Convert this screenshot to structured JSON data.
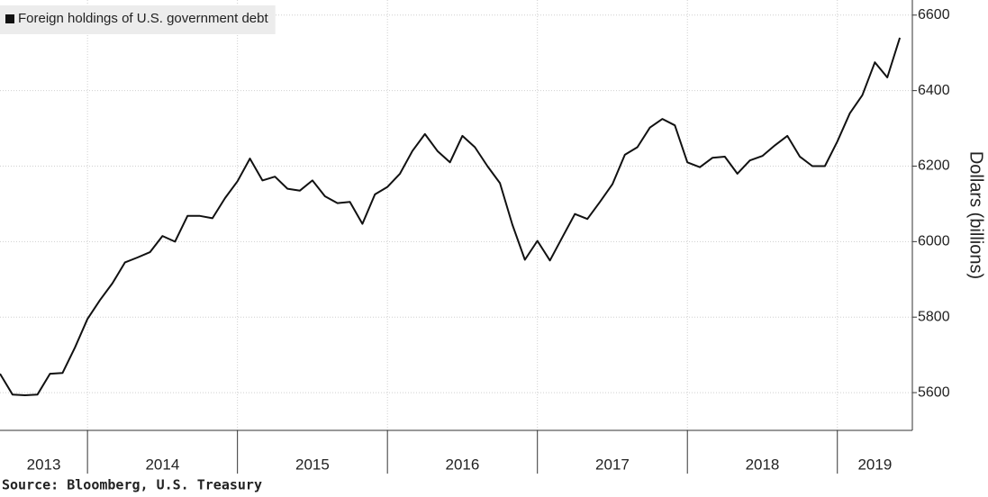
{
  "chart_data": {
    "type": "line",
    "series": [
      {
        "name": "Foreign holdings of U.S. government debt",
        "color": "#111111",
        "values": [
          5650,
          5595,
          5593,
          5595,
          5650,
          5652,
          5720,
          5795,
          5845,
          5890,
          5945,
          5958,
          5972,
          6015,
          6000,
          6068,
          6068,
          6062,
          6115,
          6160,
          6220,
          6162,
          6172,
          6140,
          6135,
          6162,
          6120,
          6102,
          6105,
          6047,
          6125,
          6145,
          6180,
          6240,
          6285,
          6240,
          6210,
          6280,
          6250,
          6200,
          6155,
          6045,
          5952,
          6002,
          5950,
          6012,
          6073,
          6060,
          6105,
          6152,
          6230,
          6250,
          6302,
          6325,
          6308,
          6210,
          6197,
          6222,
          6225,
          6180,
          6215,
          6227,
          6255,
          6280,
          6225,
          6200,
          6200,
          6265,
          6340,
          6388,
          6475,
          6435,
          6540
        ]
      }
    ],
    "x": [
      "2013-06",
      "2013-07",
      "2013-08",
      "2013-09",
      "2013-10",
      "2013-11",
      "2013-12",
      "2014-01",
      "2014-02",
      "2014-03",
      "2014-04",
      "2014-05",
      "2014-06",
      "2014-07",
      "2014-08",
      "2014-09",
      "2014-10",
      "2014-11",
      "2014-12",
      "2015-01",
      "2015-02",
      "2015-03",
      "2015-04",
      "2015-05",
      "2015-06",
      "2015-07",
      "2015-08",
      "2015-09",
      "2015-10",
      "2015-11",
      "2015-12",
      "2016-01",
      "2016-02",
      "2016-03",
      "2016-04",
      "2016-05",
      "2016-06",
      "2016-07",
      "2016-08",
      "2016-09",
      "2016-10",
      "2016-11",
      "2016-12",
      "2017-01",
      "2017-02",
      "2017-03",
      "2017-04",
      "2017-05",
      "2017-06",
      "2017-07",
      "2017-08",
      "2017-09",
      "2017-10",
      "2017-11",
      "2017-12",
      "2018-01",
      "2018-02",
      "2018-03",
      "2018-04",
      "2018-05",
      "2018-06",
      "2018-07",
      "2018-08",
      "2018-09",
      "2018-10",
      "2018-11",
      "2018-12",
      "2019-01",
      "2019-02",
      "2019-03",
      "2019-04",
      "2019-05",
      "2019-06"
    ],
    "xlim": [
      "2013-06",
      "2019-07"
    ],
    "xticks": [
      "2014-01",
      "2015-01",
      "2016-01",
      "2017-01",
      "2018-01",
      "2019-01"
    ],
    "xlabels": [
      "2013",
      "2014",
      "2015",
      "2016",
      "2017",
      "2018",
      "2019"
    ],
    "ylim": [
      5500,
      6640
    ],
    "yticks": [
      5600,
      5800,
      6000,
      6200,
      6400,
      6600
    ],
    "ylabel": "Dollars (billions)",
    "grid": true,
    "legend": "top-left",
    "source": "Source: Bloomberg, U.S. Treasury"
  }
}
